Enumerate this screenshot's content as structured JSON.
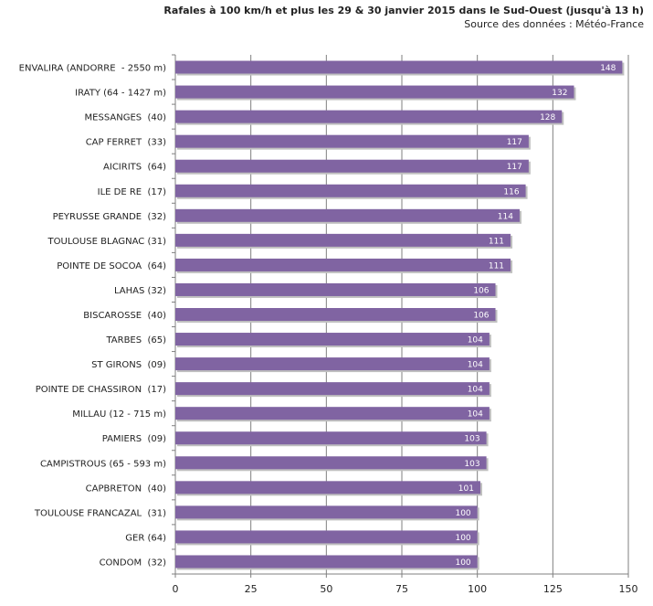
{
  "chart_data": {
    "type": "bar",
    "orientation": "horizontal",
    "title": "Rafales à 100 km/h et plus les 29 & 30  janvier 2015 dans le Sud-Ouest (jusqu'à 13 h)",
    "subtitle": "Source des données : Météo-France",
    "xlabel": "",
    "ylabel": "",
    "xlim": [
      0,
      150
    ],
    "xticks": [
      0,
      25,
      50,
      75,
      100,
      125,
      150
    ],
    "grid": true,
    "colors": {
      "bar": "#8064a2",
      "bar_shadow": "#bfbfbf",
      "grid": "#7f7f7f",
      "axis": "#7f7f7f",
      "label": "#ffffff"
    },
    "categories": [
      "ENVALIRA (ANDORRE  - 2550 m)",
      "IRATY (64 - 1427 m)",
      "MESSANGES  (40)",
      "CAP FERRET  (33)",
      "AICIRITS  (64)",
      "ILE DE RE  (17)",
      "PEYRUSSE GRANDE  (32)",
      "TOULOUSE BLAGNAC (31)",
      "POINTE DE SOCOA  (64)",
      "LAHAS (32)",
      "BISCAROSSE  (40)",
      "TARBES  (65)",
      "ST GIRONS  (09)",
      "POINTE DE CHASSIRON  (17)",
      "MILLAU (12 - 715 m)",
      "PAMIERS  (09)",
      "CAMPISTROUS (65 - 593 m)",
      "CAPBRETON  (40)",
      "TOULOUSE FRANCAZAL  (31)",
      "GER (64)",
      "CONDOM  (32)"
    ],
    "values": [
      148,
      132,
      128,
      117,
      117,
      116,
      114,
      111,
      111,
      106,
      106,
      104,
      104,
      104,
      104,
      103,
      103,
      101,
      100,
      100,
      100
    ]
  }
}
